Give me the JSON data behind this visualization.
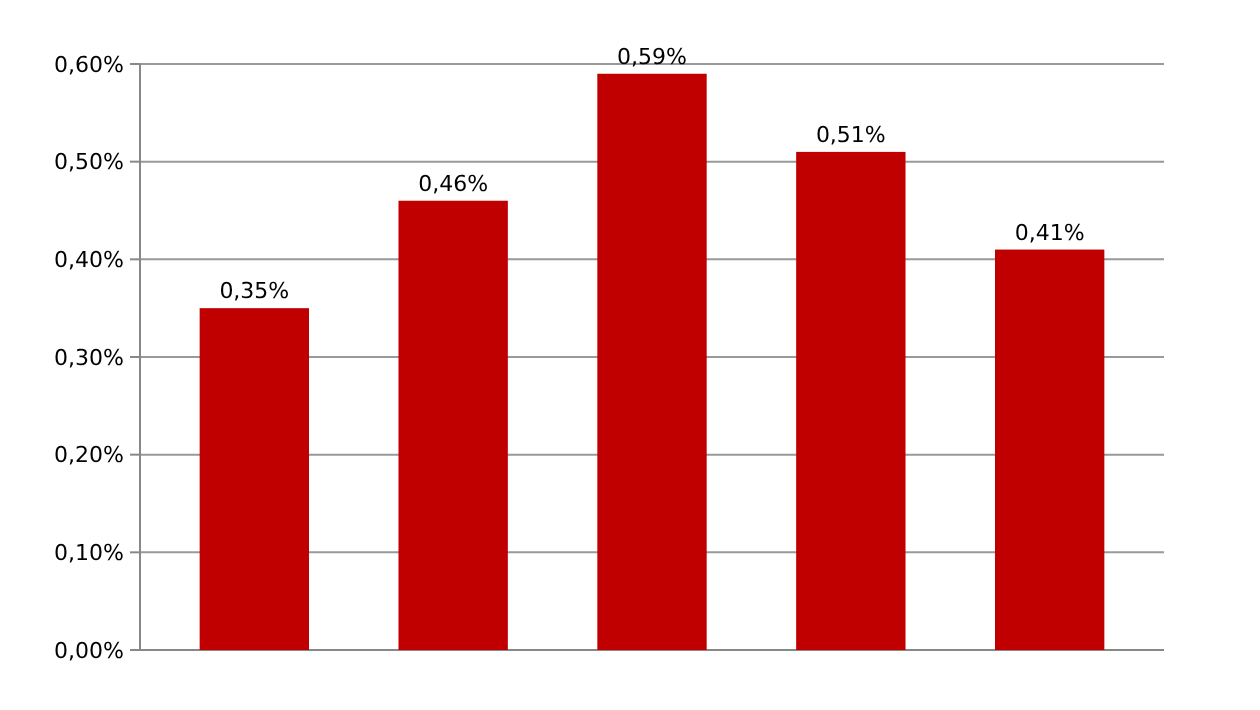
{
  "chart_data": {
    "type": "bar",
    "categories": [
      null,
      null,
      null,
      null,
      null
    ],
    "values": [
      0.35,
      0.46,
      0.59,
      0.51,
      0.41
    ],
    "color": "#c00000",
    "value_labels": [
      "0,35%",
      "0,46%",
      "0,59%",
      "0,51%",
      "0,41%"
    ],
    "ylim": [
      0,
      0.6
    ],
    "yticks": [
      {
        "value": 0,
        "label": "0,00%"
      },
      {
        "value": 0.1,
        "label": "0,10%"
      },
      {
        "value": 0.2,
        "label": "0,20%"
      },
      {
        "value": 0.3,
        "label": "0,30%"
      },
      {
        "value": 0.4,
        "label": "0,40%"
      },
      {
        "value": 0.5,
        "label": "0,50%"
      },
      {
        "value": 0.6,
        "label": "0,60%"
      }
    ],
    "grid": "y"
  }
}
